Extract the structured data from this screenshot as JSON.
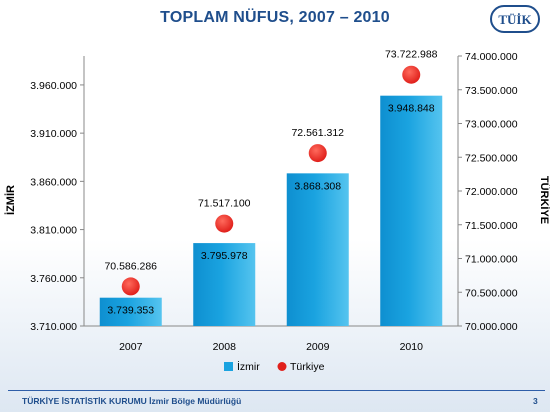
{
  "slide": {
    "title": "TOPLAM NÜFUS, 2007 – 2010",
    "logo_text": "TÜİK",
    "footer": "TÜRKİYE İSTATİSTİK KURUMU İzmir Bölge Müdürlüğü",
    "page_number": "3"
  },
  "colors": {
    "title": "#1f4e8c",
    "bar": "#1aa3e0",
    "marker": "#e0201b",
    "footer": "#1f4e8c"
  },
  "chart_data": {
    "type": "bar",
    "title": "TOPLAM NÜFUS, 2007 – 2010",
    "categories": [
      "2007",
      "2008",
      "2009",
      "2010"
    ],
    "ylabel": "İZMİR",
    "y2label": "TÜRKİYE",
    "ylim": [
      3710000,
      3990000
    ],
    "y2lim": [
      70000000,
      74000000
    ],
    "yticks": [
      "3.710.000",
      "3.760.000",
      "3.810.000",
      "3.860.000",
      "3.910.000",
      "3.960.000"
    ],
    "y2ticks": [
      "70.000.000",
      "70.500.000",
      "71.000.000",
      "71.500.000",
      "72.000.000",
      "72.500.000",
      "73.000.000",
      "73.500.000",
      "74.000.000"
    ],
    "legend_position": "bottom",
    "grid": false,
    "series": [
      {
        "name": "İzmir",
        "kind": "bar",
        "axis": "left",
        "values": [
          3739353,
          3795978,
          3868308,
          3948848
        ],
        "labels": [
          "3.739.353",
          "3.795.978",
          "3.868.308",
          "3.948.848"
        ]
      },
      {
        "name": "Türkiye",
        "kind": "marker",
        "axis": "right",
        "values": [
          70586286,
          71517100,
          72561312,
          73722988
        ],
        "labels": [
          "70.586.286",
          "71.517.100",
          "72.561.312",
          "73.722.988"
        ]
      }
    ]
  }
}
